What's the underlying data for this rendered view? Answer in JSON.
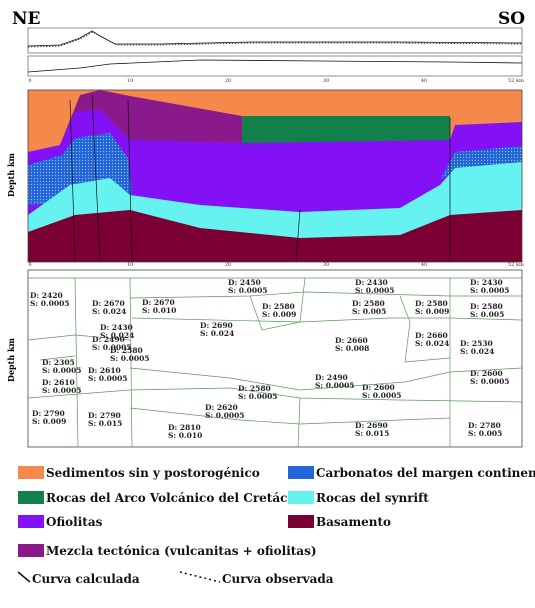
{
  "header": {
    "left": "NE",
    "right": "SO"
  },
  "scale_ticks": [
    "0",
    "10",
    "20",
    "30",
    "40",
    "52 km"
  ],
  "depth_label": "Depth km",
  "density_labels": [
    {
      "d": "D: 2450",
      "s": "S: 0.0005"
    },
    {
      "d": "D: 2430",
      "s": "S: 0.0005"
    },
    {
      "d": "D: 2430",
      "s": "S: 0.0005"
    },
    {
      "d": "D: 2670",
      "s": "S: 0.010"
    },
    {
      "d": "D: 2580",
      "s": "S: 0.009"
    },
    {
      "d": "D: 2580",
      "s": "S: 0.005"
    },
    {
      "d": "D: 2580",
      "s": "S: 0.009"
    },
    {
      "d": "D: 2580",
      "s": "S: 0.005"
    },
    {
      "d": "D: 2690",
      "s": "S: 0.024"
    },
    {
      "d": "D: 2660",
      "s": "S: 0.008"
    },
    {
      "d": "D: 2660",
      "s": "S: 0.024"
    },
    {
      "d": "D: 2530",
      "s": "S: 0.024"
    },
    {
      "d": "D: 2490",
      "s": "S: 0.0005"
    },
    {
      "d": "D: 2580",
      "s": "S: 0.0005"
    },
    {
      "d": "D: 2610",
      "s": "S: 0.0005"
    },
    {
      "d": "D: 2305",
      "s": "S: 0.0005"
    },
    {
      "d": "D: 2610",
      "s": "S: 0.0005"
    },
    {
      "d": "D: 2580",
      "s": "S: 0.0005"
    },
    {
      "d": "D: 2490",
      "s": "S: 0.0005"
    },
    {
      "d": "D: 2600",
      "s": "S: 0.0005"
    },
    {
      "d": "D: 2600",
      "s": "S: 0.0005"
    },
    {
      "d": "D: 2620",
      "s": "S: 0.0005"
    },
    {
      "d": "D: 2790",
      "s": "S: 0.009"
    },
    {
      "d": "D: 2790",
      "s": "S: 0.015"
    },
    {
      "d": "D: 2810",
      "s": "S: 0.010"
    },
    {
      "d": "D: 2690",
      "s": "S: 0.015"
    },
    {
      "d": "D: 2780",
      "s": "S: 0.005"
    },
    {
      "d": "D: 2420",
      "s": "S: 0.0005"
    },
    {
      "d": "D: 2670",
      "s": "S: 0.024"
    },
    {
      "d": "D: 2430",
      "s": "S: 0.024"
    }
  ],
  "legend": [
    {
      "label": "Sedimentos sin y postorogénico",
      "color": "#f5894c"
    },
    {
      "label": "Carbonatos del margen continental",
      "color": "#2266d8"
    },
    {
      "label": "Rocas del Arco Volcánico del Cretácico",
      "color": "#12804a"
    },
    {
      "label": "Rocas del synrift",
      "color": "#66f3f0"
    },
    {
      "label": "Ofiolitas",
      "color": "#8410f5"
    },
    {
      "label": "Basamento",
      "color": "#7b0034"
    },
    {
      "label": "Mezcla tectónica (vulcanitas + ofiolitas)",
      "color": "#8a1a8c"
    }
  ],
  "curves": [
    "Curva calculada",
    "Curva observada"
  ]
}
